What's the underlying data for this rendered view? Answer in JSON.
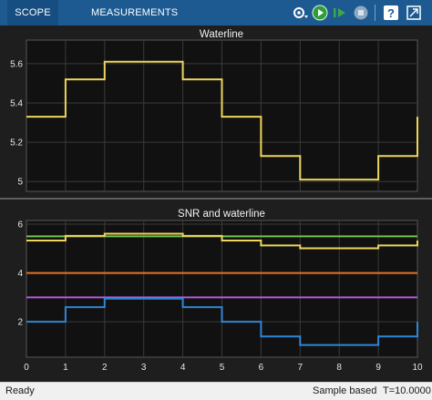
{
  "toolbar": {
    "tabs": [
      {
        "label": "SCOPE",
        "active": true
      },
      {
        "label": "MEASUREMENTS",
        "active": false
      }
    ],
    "buttons": [
      {
        "icon": "settings-dropdown-icon"
      },
      {
        "icon": "run-icon"
      },
      {
        "icon": "step-forward-icon"
      },
      {
        "icon": "stop-icon"
      },
      {
        "icon": "help-icon"
      },
      {
        "icon": "undock-icon"
      }
    ]
  },
  "status": {
    "left": "Ready",
    "middle": "Sample based",
    "right": "T=10.0000"
  },
  "chart_data": [
    {
      "type": "line",
      "title": "Waterline",
      "xlim": [
        0,
        10
      ],
      "ylim": [
        4.95,
        5.72
      ],
      "yticks": [
        "5",
        "5.2",
        "5.4",
        "5.6"
      ],
      "step": true,
      "series": [
        {
          "color": "#edd45c",
          "x": [
            0,
            1,
            2,
            3,
            4,
            5,
            6,
            7,
            8,
            9,
            10
          ],
          "y": [
            5.33,
            5.52,
            5.61,
            5.61,
            5.52,
            5.33,
            5.13,
            5.01,
            5.01,
            5.13,
            5.33
          ]
        }
      ]
    },
    {
      "type": "line",
      "title": "SNR and waterline",
      "xlim": [
        0,
        10
      ],
      "ylim": [
        0.55,
        6.15
      ],
      "xticks": [
        "0",
        "1",
        "2",
        "3",
        "4",
        "5",
        "6",
        "7",
        "8",
        "9",
        "10"
      ],
      "yticks": [
        "2",
        "4",
        "6"
      ],
      "step": true,
      "series": [
        {
          "color": "#6ec54b",
          "x": [
            0,
            10
          ],
          "y": [
            5.5,
            5.5
          ]
        },
        {
          "color": "#edd45c",
          "x": [
            0,
            1,
            2,
            3,
            4,
            5,
            6,
            7,
            8,
            9,
            10
          ],
          "y": [
            5.33,
            5.52,
            5.61,
            5.61,
            5.52,
            5.33,
            5.13,
            5.01,
            5.01,
            5.13,
            5.33
          ]
        },
        {
          "color": "#e8722b",
          "x": [
            0,
            10
          ],
          "y": [
            4.0,
            4.0
          ]
        },
        {
          "color": "#b45ce0",
          "x": [
            0,
            10
          ],
          "y": [
            3.0,
            3.0
          ]
        },
        {
          "color": "#2f86d6",
          "x": [
            0,
            1,
            2,
            3,
            4,
            5,
            6,
            7,
            8,
            9,
            10
          ],
          "y": [
            2.0,
            2.6,
            2.95,
            2.95,
            2.6,
            2.0,
            1.4,
            1.05,
            1.05,
            1.4,
            2.0
          ]
        }
      ]
    }
  ]
}
